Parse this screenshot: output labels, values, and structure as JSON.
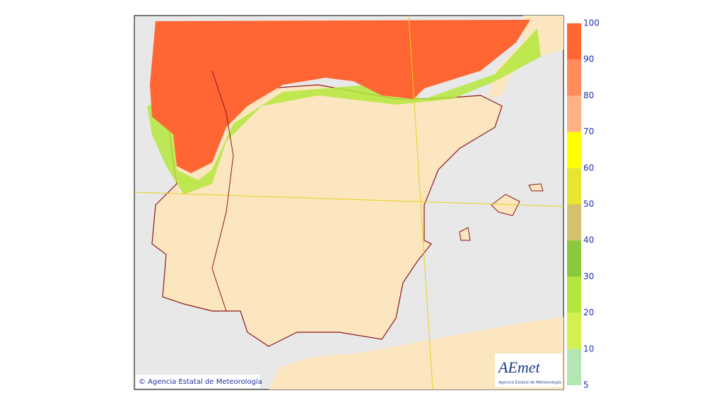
{
  "map": {
    "copyright": "© Agencia Estatal de Meteorología",
    "logo": {
      "title": "AEmet",
      "subtitle": "Agencia Estatal de Meteorología"
    },
    "legend": {
      "ticks": [
        100,
        90,
        80,
        70,
        60,
        50,
        40,
        30,
        20,
        10,
        5
      ],
      "colors": [
        "#ff6633",
        "#ff8c5a",
        "#ffb084",
        "#ffff00",
        "#e6e632",
        "#d2c26e",
        "#8cc83c",
        "#b4e63c",
        "#d2f050",
        "#b4e6b4"
      ]
    }
  }
}
